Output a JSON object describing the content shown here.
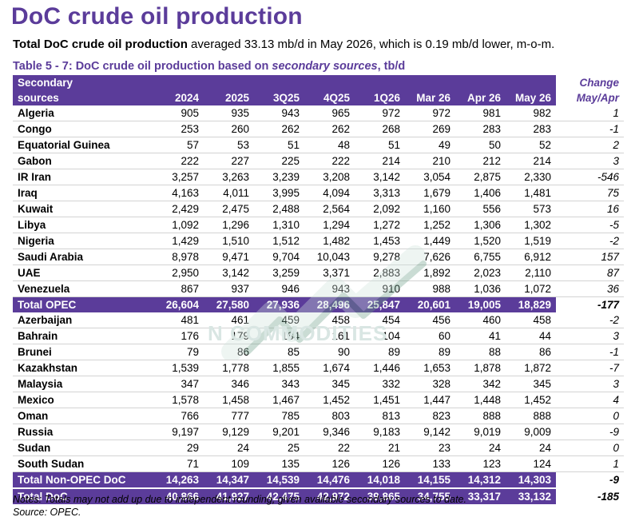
{
  "page": {
    "title": "DoC crude oil production",
    "summary_lead": "Total DoC crude oil production",
    "summary_rest": " averaged 33.13 mb/d in May 2026, which is 0.19 mb/d lower, m-o-m.",
    "caption_pre": "Table 5 - 7: DoC crude oil production based on ",
    "caption_italic": "secondary sources",
    "caption_post": ", tb/d"
  },
  "table": {
    "header": {
      "name_line1": "Secondary",
      "name_line2": "sources",
      "change_line1": "Change",
      "change_line2": "May/Apr",
      "columns": [
        "2024",
        "2025",
        "3Q25",
        "4Q25",
        "1Q26",
        "Mar 26",
        "Apr 26",
        "May 26"
      ]
    },
    "opec_rows": [
      {
        "name": "Algeria",
        "values": [
          "905",
          "935",
          "943",
          "965",
          "972",
          "972",
          "981",
          "982"
        ],
        "change": "1"
      },
      {
        "name": "Congo",
        "values": [
          "253",
          "260",
          "262",
          "262",
          "268",
          "269",
          "283",
          "283"
        ],
        "change": "-1"
      },
      {
        "name": "Equatorial Guinea",
        "values": [
          "57",
          "53",
          "51",
          "48",
          "51",
          "49",
          "50",
          "52"
        ],
        "change": "2"
      },
      {
        "name": "Gabon",
        "values": [
          "222",
          "227",
          "225",
          "222",
          "214",
          "210",
          "212",
          "214"
        ],
        "change": "3"
      },
      {
        "name": "IR Iran",
        "values": [
          "3,257",
          "3,263",
          "3,239",
          "3,208",
          "3,142",
          "3,054",
          "2,875",
          "2,330"
        ],
        "change": "-546"
      },
      {
        "name": "Iraq",
        "values": [
          "4,163",
          "4,011",
          "3,995",
          "4,094",
          "3,313",
          "1,679",
          "1,406",
          "1,481"
        ],
        "change": "75"
      },
      {
        "name": "Kuwait",
        "values": [
          "2,429",
          "2,475",
          "2,488",
          "2,564",
          "2,092",
          "1,160",
          "556",
          "573"
        ],
        "change": "16"
      },
      {
        "name": "Libya",
        "values": [
          "1,092",
          "1,296",
          "1,310",
          "1,294",
          "1,272",
          "1,252",
          "1,306",
          "1,302"
        ],
        "change": "-5"
      },
      {
        "name": "Nigeria",
        "values": [
          "1,429",
          "1,510",
          "1,512",
          "1,482",
          "1,453",
          "1,449",
          "1,520",
          "1,519"
        ],
        "change": "-2"
      },
      {
        "name": "Saudi Arabia",
        "values": [
          "8,978",
          "9,471",
          "9,704",
          "10,043",
          "9,278",
          "7,626",
          "6,755",
          "6,912"
        ],
        "change": "157"
      },
      {
        "name": "UAE",
        "values": [
          "2,950",
          "3,142",
          "3,259",
          "3,371",
          "2,883",
          "1,892",
          "2,023",
          "2,110"
        ],
        "change": "87"
      },
      {
        "name": "Venezuela",
        "values": [
          "867",
          "937",
          "946",
          "943",
          "910",
          "988",
          "1,036",
          "1,072"
        ],
        "change": "36"
      }
    ],
    "total_opec": {
      "name": "Total  OPEC",
      "values": [
        "26,604",
        "27,580",
        "27,936",
        "28,496",
        "25,847",
        "20,601",
        "19,005",
        "18,829"
      ],
      "change": "-177"
    },
    "non_opec_rows": [
      {
        "name": "Azerbaijan",
        "values": [
          "481",
          "461",
          "459",
          "458",
          "454",
          "456",
          "460",
          "458"
        ],
        "change": "-2"
      },
      {
        "name": "Bahrain",
        "values": [
          "176",
          "179",
          "184",
          "161",
          "104",
          "60",
          "41",
          "44"
        ],
        "change": "3"
      },
      {
        "name": "Brunei",
        "values": [
          "79",
          "86",
          "85",
          "90",
          "89",
          "89",
          "88",
          "86"
        ],
        "change": "-1"
      },
      {
        "name": "Kazakhstan",
        "values": [
          "1,539",
          "1,778",
          "1,855",
          "1,674",
          "1,446",
          "1,653",
          "1,878",
          "1,872"
        ],
        "change": "-7"
      },
      {
        "name": "Malaysia",
        "values": [
          "347",
          "346",
          "343",
          "345",
          "332",
          "328",
          "342",
          "345"
        ],
        "change": "3"
      },
      {
        "name": "Mexico",
        "values": [
          "1,578",
          "1,458",
          "1,467",
          "1,452",
          "1,451",
          "1,447",
          "1,448",
          "1,452"
        ],
        "change": "4"
      },
      {
        "name": "Oman",
        "values": [
          "766",
          "777",
          "785",
          "803",
          "813",
          "823",
          "888",
          "888"
        ],
        "change": "0"
      },
      {
        "name": "Russia",
        "values": [
          "9,197",
          "9,129",
          "9,201",
          "9,346",
          "9,183",
          "9,142",
          "9,019",
          "9,009"
        ],
        "change": "-9"
      },
      {
        "name": "Sudan",
        "values": [
          "29",
          "24",
          "25",
          "22",
          "21",
          "23",
          "24",
          "24"
        ],
        "change": "0"
      },
      {
        "name": "South Sudan",
        "values": [
          "71",
          "109",
          "135",
          "126",
          "126",
          "133",
          "123",
          "124"
        ],
        "change": "1"
      }
    ],
    "total_non_opec": {
      "name": "Total Non-OPEC DoC",
      "values": [
        "14,263",
        "14,347",
        "14,539",
        "14,476",
        "14,018",
        "14,155",
        "14,312",
        "14,303"
      ],
      "change": "-9"
    },
    "total_doc": {
      "name": "Total DoC",
      "values": [
        "40,866",
        "41,927",
        "42,475",
        "42,972",
        "39,865",
        "34,755",
        "33,317",
        "33,132"
      ],
      "change": "-185"
    }
  },
  "notes": {
    "line1": "Notes: Totals may not add up due to independent rounding, given available secondary sources to date.",
    "line2": "Source: OPEC."
  },
  "watermark": {
    "text": "N COMMODITIES",
    "colors": {
      "light": "#cfe3dc",
      "dark": "#6a9e86"
    }
  },
  "colors": {
    "accent": "#5b3c9a",
    "row_rule": "#d3d3d3"
  }
}
